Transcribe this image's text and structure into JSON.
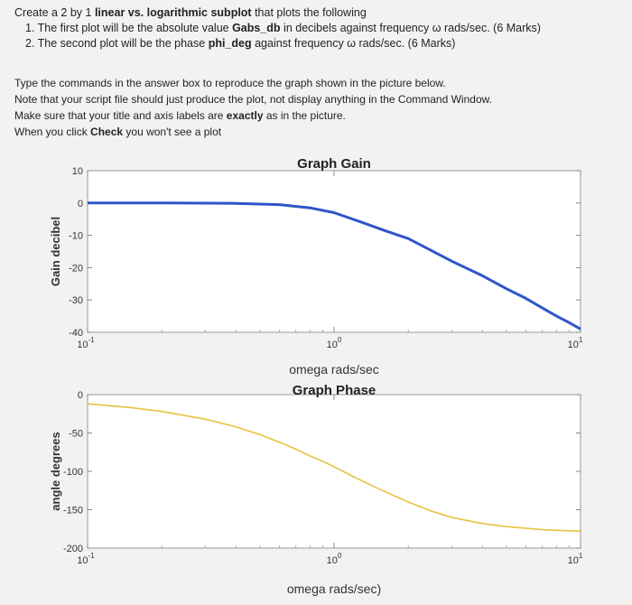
{
  "task": {
    "intro_pre": "Create a 2 by 1 ",
    "intro_bold": "linear vs. logarithmic subplot",
    "intro_post": " that plots the following",
    "item1_pre": "1. The first plot will be the absolute value ",
    "item1_bold": "Gabs_db",
    "item1_post": " in decibels against frequency ω rads/sec. (6 Marks)",
    "item2_pre": "2. The second plot will be the phase ",
    "item2_bold": "phi_deg",
    "item2_post": " against frequency  ω rads/sec. (6 Marks)"
  },
  "instructions": {
    "line1": "Type the commands in the answer box to reproduce the graph shown in the picture below.",
    "line2": "Note that your script file should just produce the plot, not display anything in the Command Window.",
    "line3_pre": "Make sure that your title and axis labels are ",
    "line3_bold": "exactly",
    "line3_post": " as in the picture.",
    "line4_pre": "When you click ",
    "line4_bold": "Check",
    "line4_post": " you won't see a plot"
  },
  "chart_data": [
    {
      "type": "line",
      "title": "Graph Gain",
      "xlabel": "omega rads/sec",
      "ylabel": "Gain decibel",
      "xscale": "log",
      "xlim": [
        0.1,
        10
      ],
      "ylim": [
        -40,
        10
      ],
      "yticks": [
        -40,
        -30,
        -20,
        -10,
        0,
        10
      ],
      "xtick_labels": [
        "10-1",
        "100",
        "101"
      ],
      "grid": false,
      "color": "#2f55c8",
      "series": [
        {
          "x": [
            0.1,
            0.2,
            0.4,
            0.6,
            0.8,
            1.0,
            1.3,
            1.6,
            2,
            3,
            4,
            5,
            6,
            7,
            8,
            9,
            10
          ],
          "values": [
            0,
            0,
            -0.1,
            -0.5,
            -1.5,
            -3,
            -6,
            -8.5,
            -11,
            -18,
            -22.5,
            -26.5,
            -29.5,
            -32.5,
            -35,
            -37,
            -39
          ]
        }
      ]
    },
    {
      "type": "line",
      "title": "Graph Phase",
      "xlabel": "omega rads/sec)",
      "ylabel": "angle degrees",
      "xscale": "log",
      "xlim": [
        0.1,
        10
      ],
      "ylim": [
        -200,
        0
      ],
      "yticks": [
        -200,
        -150,
        -100,
        -50,
        0
      ],
      "xtick_labels": [
        "10-1",
        "100",
        "101"
      ],
      "grid": false,
      "color": "#e8c240",
      "series": [
        {
          "x": [
            0.1,
            0.15,
            0.2,
            0.3,
            0.4,
            0.5,
            0.6,
            0.7,
            0.8,
            0.9,
            1.0,
            1.2,
            1.5,
            2,
            2.5,
            3,
            4,
            5,
            7,
            10
          ],
          "values": [
            -12,
            -17,
            -22,
            -32,
            -42,
            -52,
            -62,
            -71,
            -80,
            -87,
            -94,
            -107,
            -122,
            -140,
            -152,
            -160,
            -168,
            -172,
            -176,
            -178
          ]
        }
      ]
    }
  ]
}
